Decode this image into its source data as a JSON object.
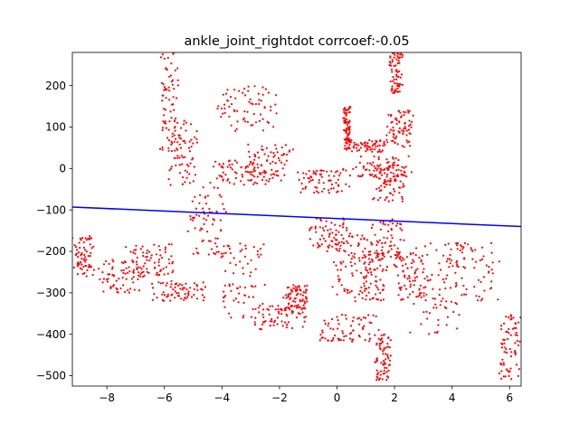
{
  "chart_data": {
    "type": "scatter",
    "title": "ankle_joint_rightdot corrcoef:-0.05",
    "xlabel": "",
    "ylabel": "",
    "xlim": [
      -9.2,
      6.4
    ],
    "ylim": [
      -525,
      280
    ],
    "x_ticks": [
      -8,
      -6,
      -4,
      -2,
      0,
      2,
      4,
      6
    ],
    "y_ticks": [
      200,
      100,
      0,
      -100,
      -200,
      -300,
      -400,
      -500
    ],
    "x_tick_labels": [
      "−8",
      "−6",
      "−4",
      "−2",
      "0",
      "2",
      "4",
      "6"
    ],
    "y_tick_labels": [
      "200",
      "100",
      "0",
      "−100",
      "−200",
      "−300",
      "−400",
      "−500"
    ],
    "grid": false,
    "colors": {
      "points": "#ff0000",
      "fit_line": "#0000ff"
    },
    "fit_line": {
      "x": [
        -9.2,
        6.4
      ],
      "y": [
        -93,
        -140
      ]
    },
    "point_clusters": [
      {
        "x": [
          -9.2,
          -8.4
        ],
        "y": [
          -260,
          -160
        ]
      },
      {
        "x": [
          -8.5,
          -6.5
        ],
        "y": [
          -300,
          -220
        ]
      },
      {
        "x": [
          -7.5,
          -5.5
        ],
        "y": [
          -260,
          -180
        ]
      },
      {
        "x": [
          -6.5,
          -4.5
        ],
        "y": [
          -320,
          -270
        ]
      },
      {
        "x": [
          -6.2,
          -5.5
        ],
        "y": [
          40,
          280
        ]
      },
      {
        "x": [
          -5.9,
          -4.8
        ],
        "y": [
          -40,
          120
        ]
      },
      {
        "x": [
          -5.2,
          -3.8
        ],
        "y": [
          -210,
          -40
        ]
      },
      {
        "x": [
          -4.5,
          -2.2
        ],
        "y": [
          -40,
          20
        ]
      },
      {
        "x": [
          -4.3,
          -2.0
        ],
        "y": [
          90,
          200
        ]
      },
      {
        "x": [
          -4.2,
          -2.5
        ],
        "y": [
          -360,
          -180
        ]
      },
      {
        "x": [
          -3.2,
          -1.5
        ],
        "y": [
          -30,
          60
        ]
      },
      {
        "x": [
          -3.0,
          -1.0
        ],
        "y": [
          -390,
          -330
        ]
      },
      {
        "x": [
          -1.9,
          -0.9
        ],
        "y": [
          -340,
          -280
        ]
      },
      {
        "x": [
          -1.5,
          0.5
        ],
        "y": [
          -60,
          0
        ]
      },
      {
        "x": [
          -0.8,
          1.5
        ],
        "y": [
          -420,
          -350
        ]
      },
      {
        "x": [
          -1.0,
          0.6
        ],
        "y": [
          -200,
          -120
        ]
      },
      {
        "x": [
          -0.2,
          1.2
        ],
        "y": [
          -330,
          -160
        ]
      },
      {
        "x": [
          0.2,
          0.5
        ],
        "y": [
          60,
          150
        ]
      },
      {
        "x": [
          0.2,
          1.8
        ],
        "y": [
          40,
          70
        ]
      },
      {
        "x": [
          0.5,
          2.6
        ],
        "y": [
          -20,
          30
        ]
      },
      {
        "x": [
          0.8,
          1.8
        ],
        "y": [
          -320,
          -200
        ]
      },
      {
        "x": [
          1.0,
          2.5
        ],
        "y": [
          -220,
          -120
        ]
      },
      {
        "x": [
          1.2,
          2.5
        ],
        "y": [
          -80,
          10
        ]
      },
      {
        "x": [
          1.3,
          1.9
        ],
        "y": [
          -510,
          -400
        ]
      },
      {
        "x": [
          1.7,
          2.7
        ],
        "y": [
          50,
          140
        ]
      },
      {
        "x": [
          1.8,
          2.3
        ],
        "y": [
          180,
          280
        ]
      },
      {
        "x": [
          1.9,
          3.2
        ],
        "y": [
          -320,
          -200
        ]
      },
      {
        "x": [
          2.5,
          4.5
        ],
        "y": [
          -400,
          -180
        ]
      },
      {
        "x": [
          3.5,
          5.8
        ],
        "y": [
          -320,
          -180
        ]
      },
      {
        "x": [
          5.6,
          6.4
        ],
        "y": [
          -510,
          -350
        ]
      }
    ]
  }
}
